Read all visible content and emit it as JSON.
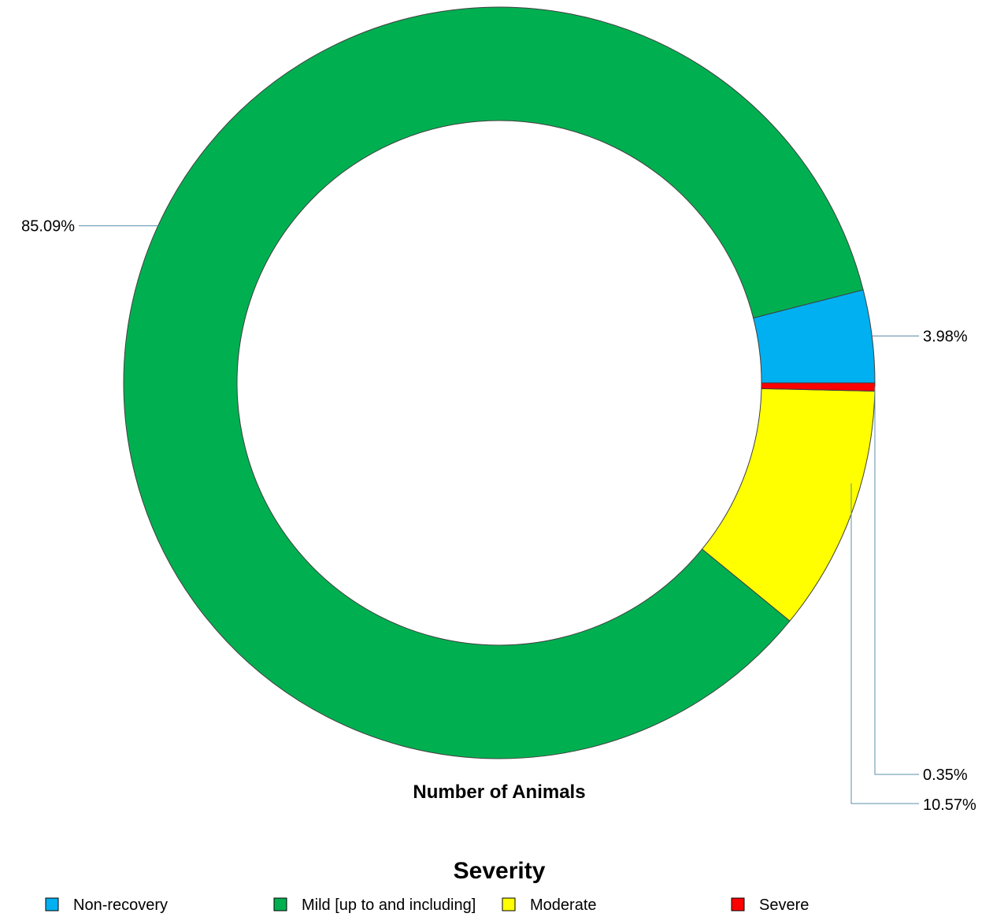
{
  "chart_data": {
    "type": "pie",
    "style": "donut",
    "title": "Number of Animals",
    "legend_title": "Severity",
    "legend_position": "bottom",
    "series": [
      {
        "name": "Non-recovery",
        "value": 3.98,
        "label": "3.98%",
        "color": "#00B0F0"
      },
      {
        "name": "Mild [up to and including]",
        "value": 85.09,
        "label": "85.09%",
        "color": "#00B050"
      },
      {
        "name": "Moderate",
        "value": 10.57,
        "label": "10.57%",
        "color": "#FFFF00"
      },
      {
        "name": "Severe",
        "value": 0.35,
        "label": "0.35%",
        "color": "#FF0000"
      }
    ]
  }
}
